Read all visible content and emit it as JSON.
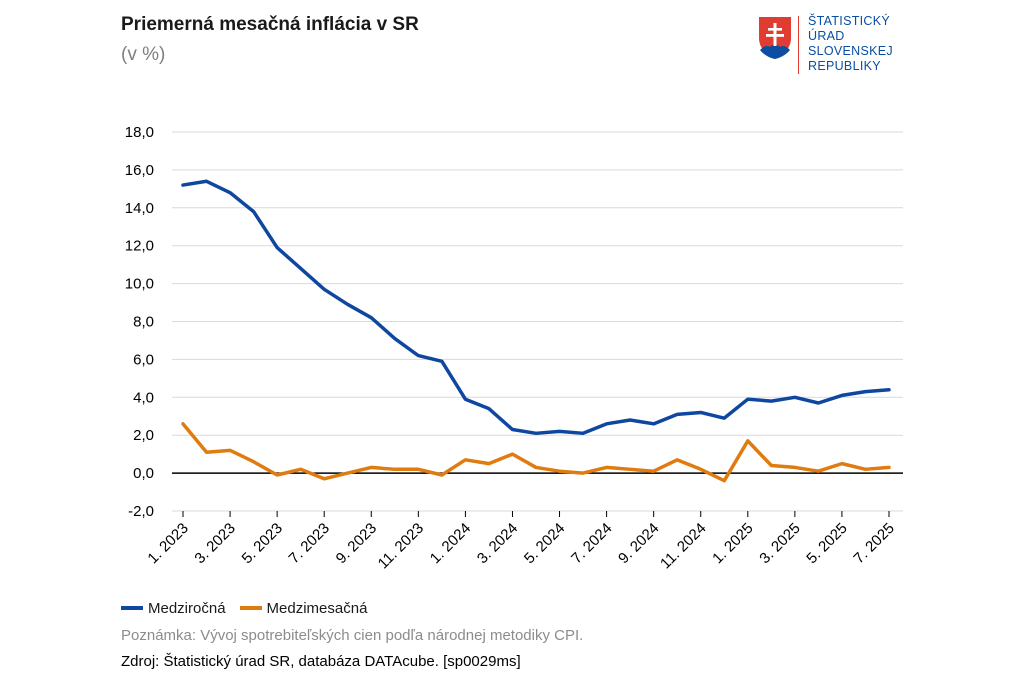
{
  "header": {
    "title": "Priemerná mesačná inflácia v SR",
    "subtitle": "(v %)"
  },
  "logo": {
    "lines": [
      "ŠTATISTICKÝ",
      "ÚRAD",
      "SLOVENSKEJ",
      "REPUBLIKY"
    ],
    "brand_color": "#0b4ea2",
    "accent_color": "#e03c31"
  },
  "footer": {
    "note": "Poznámka: Vývoj spotrebiteľských cien podľa národnej metodiky CPI.",
    "source": "Zdroj: Štatistický úrad SR, databáza DATAcube. [sp0029ms]"
  },
  "chart_data": {
    "type": "line",
    "title": "Priemerná mesačná inflácia v SR",
    "subtitle": "(v %)",
    "xlabel": "",
    "ylabel": "",
    "ylim": [
      -2,
      18
    ],
    "yticks": [
      -2,
      0,
      2,
      4,
      6,
      8,
      10,
      12,
      14,
      16,
      18
    ],
    "ytick_labels": [
      "-2,0",
      "0,0",
      "2,0",
      "4,0",
      "6,0",
      "8,0",
      "10,0",
      "12,0",
      "14,0",
      "16,0",
      "18,0"
    ],
    "grid": true,
    "zero_line": true,
    "legend_position": "bottom-left",
    "categories": [
      "1. 2023",
      "2. 2023",
      "3. 2023",
      "4. 2023",
      "5. 2023",
      "6. 2023",
      "7. 2023",
      "8. 2023",
      "9. 2023",
      "10. 2023",
      "11. 2023",
      "12. 2023",
      "1. 2024",
      "2. 2024",
      "3. 2024",
      "4. 2024",
      "5. 2024",
      "6. 2024",
      "7. 2024",
      "8. 2024",
      "9. 2024",
      "10. 2024",
      "11. 2024",
      "12. 2024",
      "1. 2025",
      "2. 2025",
      "3. 2025",
      "4. 2025",
      "5. 2025",
      "6. 2025",
      "7. 2025"
    ],
    "x_tick_labels": [
      "1. 2023",
      "3. 2023",
      "5. 2023",
      "7. 2023",
      "9. 2023",
      "11. 2023",
      "1. 2024",
      "3. 2024",
      "5. 2024",
      "7. 2024",
      "9. 2024",
      "11. 2024",
      "1. 2025",
      "3. 2025",
      "5. 2025",
      "7. 2025"
    ],
    "x_tick_indices": [
      0,
      2,
      4,
      6,
      8,
      10,
      12,
      14,
      16,
      18,
      20,
      22,
      24,
      26,
      28,
      30
    ],
    "series": [
      {
        "name": "Medziročná",
        "color": "#0f47a0",
        "values": [
          15.2,
          15.4,
          14.8,
          13.8,
          11.9,
          10.8,
          9.7,
          8.9,
          8.2,
          7.1,
          6.2,
          5.9,
          3.9,
          3.4,
          2.3,
          2.1,
          2.2,
          2.1,
          2.6,
          2.8,
          2.6,
          3.1,
          3.2,
          2.9,
          3.9,
          3.8,
          4.0,
          3.7,
          4.1,
          4.3,
          4.4
        ]
      },
      {
        "name": "Medzimesačná",
        "color": "#e07b10",
        "values": [
          2.6,
          1.1,
          1.2,
          0.6,
          -0.1,
          0.2,
          -0.3,
          0.0,
          0.3,
          0.2,
          0.2,
          -0.1,
          0.7,
          0.5,
          1.0,
          0.3,
          0.1,
          0.0,
          0.3,
          0.2,
          0.1,
          0.7,
          0.2,
          -0.4,
          1.7,
          0.4,
          0.3,
          0.1,
          0.5,
          0.2,
          0.3
        ]
      }
    ]
  }
}
